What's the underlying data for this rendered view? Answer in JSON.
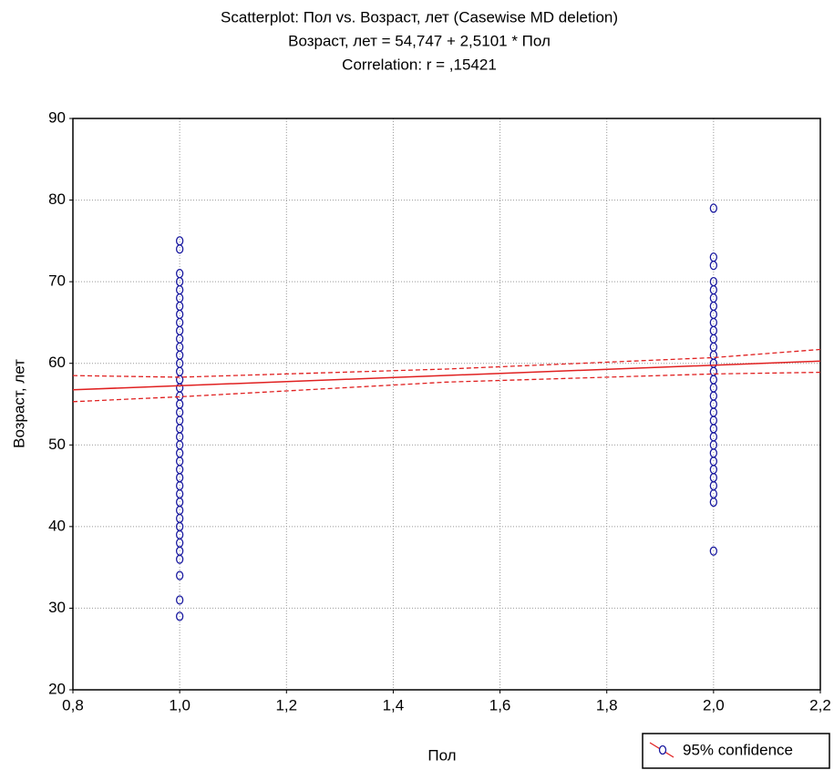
{
  "chart_data": {
    "type": "scatter",
    "title": "Scatterplot: Пол     vs. Возраст, лет (Casewise MD deletion)",
    "subtitle": "Возраст, лет = 54,747 + 2,5101 * Пол",
    "annotation": "Correlation: r = ,15421",
    "x_label": "Пол",
    "y_label": "Возраст, лет",
    "xlim": [
      0.8,
      2.2
    ],
    "ylim": [
      20,
      90
    ],
    "xticks": [
      {
        "value": 0.8,
        "label": "0,8"
      },
      {
        "value": 1.0,
        "label": "1,0"
      },
      {
        "value": 1.2,
        "label": "1,2"
      },
      {
        "value": 1.4,
        "label": "1,4"
      },
      {
        "value": 1.6,
        "label": "1,6"
      },
      {
        "value": 1.8,
        "label": "1,8"
      },
      {
        "value": 2.0,
        "label": "2,0"
      },
      {
        "value": 2.2,
        "label": "2,2"
      }
    ],
    "yticks": [
      20,
      30,
      40,
      50,
      60,
      70,
      80,
      90
    ],
    "grid": true,
    "series": [
      {
        "color": "#1a1aa0",
        "x": [
          1,
          1,
          1,
          1,
          1,
          1,
          1,
          1,
          1,
          1,
          1,
          1,
          1,
          1,
          1,
          1,
          1,
          1,
          1,
          1,
          1,
          1,
          1,
          1,
          1,
          1,
          1,
          1,
          1,
          1,
          1,
          1,
          1,
          1,
          1,
          1,
          1,
          1,
          1,
          1,
          1,
          2,
          2,
          2,
          2,
          2,
          2,
          2,
          2,
          2,
          2,
          2,
          2,
          2,
          2,
          2,
          2,
          2,
          2,
          2,
          2,
          2,
          2,
          2,
          2,
          2,
          2,
          2,
          2,
          2,
          2,
          2,
          2
        ],
        "y": [
          29,
          31,
          34,
          36,
          37,
          38,
          39,
          40,
          41,
          42,
          43,
          44,
          45,
          46,
          47,
          48,
          49,
          50,
          51,
          52,
          53,
          54,
          55,
          56,
          57,
          58,
          59,
          60,
          61,
          62,
          63,
          64,
          65,
          66,
          67,
          68,
          69,
          70,
          71,
          74,
          75,
          37,
          43,
          44,
          45,
          46,
          47,
          48,
          49,
          50,
          51,
          52,
          53,
          54,
          55,
          56,
          57,
          58,
          59,
          60,
          61,
          62,
          63,
          64,
          65,
          66,
          67,
          68,
          69,
          70,
          72,
          73,
          79
        ]
      }
    ],
    "regression": {
      "color": "#e02020",
      "intercept": 54.747,
      "slope": 2.5101
    },
    "confidence_band": {
      "x": [
        0.8,
        1.0,
        1.5,
        2.0,
        2.2
      ],
      "upper": [
        58.5,
        58.3,
        59.3,
        60.7,
        61.7
      ],
      "lower": [
        55.3,
        55.9,
        57.7,
        58.7,
        58.9
      ]
    },
    "legend_label": "95% confidence",
    "legend_position": "lower right"
  }
}
